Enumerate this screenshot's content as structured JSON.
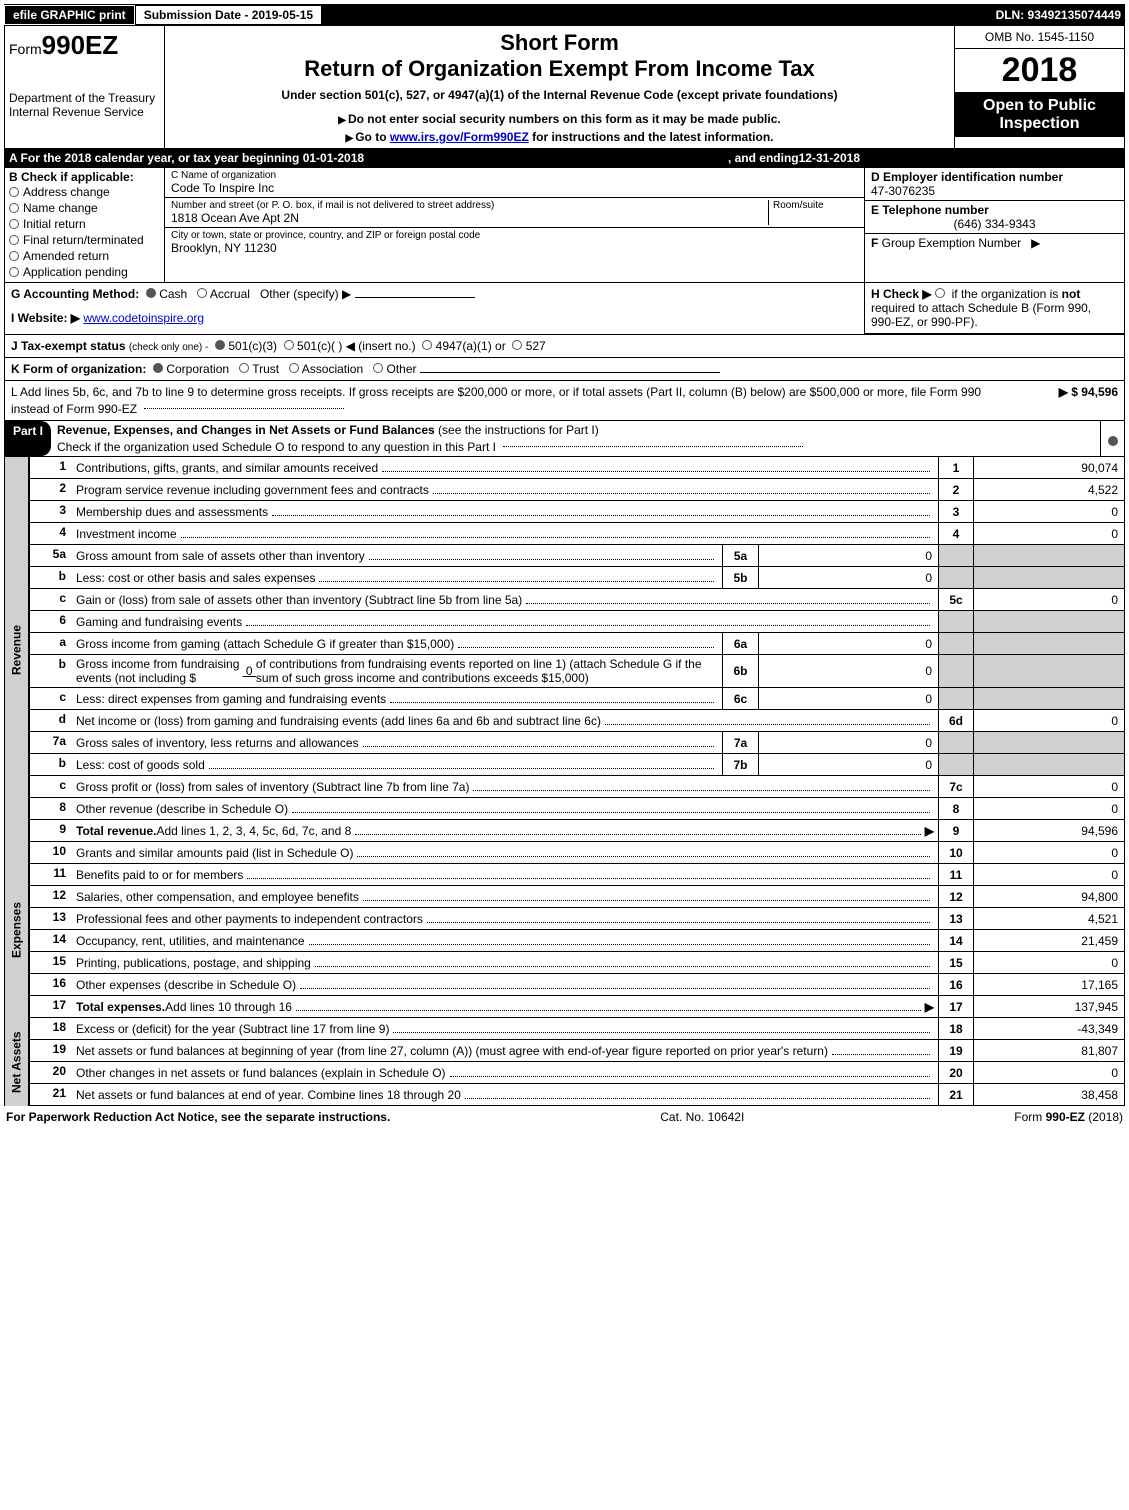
{
  "topbar": {
    "efile": "efile GRAPHIC print",
    "submission": "Submission Date - 2019-05-15",
    "dln": "DLN: 93492135074449"
  },
  "header": {
    "form_prefix": "Form",
    "form_number": "990EZ",
    "dept": "Department of the Treasury",
    "irs": "Internal Revenue Service",
    "short_form": "Short Form",
    "title": "Return of Organization Exempt From Income Tax",
    "subtitle": "Under section 501(c), 527, or 4947(a)(1) of the Internal Revenue Code (except private foundations)",
    "ssn_note": "Do not enter social security numbers on this form as it may be made public.",
    "goto": "Go to ",
    "goto_link": "www.irs.gov/Form990EZ",
    "goto_rest": " for instructions and the latest information.",
    "omb": "OMB No. 1545-1150",
    "year": "2018",
    "open": "Open to Public Inspection"
  },
  "rowA": {
    "text_pre": "A  For the 2018 calendar year, or tax year beginning ",
    "begin": "01-01-2018",
    "mid": " , and ending ",
    "end": "12-31-2018"
  },
  "colB": {
    "label": "B  Check if applicable:",
    "items": [
      "Address change",
      "Name change",
      "Initial return",
      "Final return/terminated",
      "Amended return",
      "Application pending"
    ]
  },
  "colC": {
    "name_label": "C Name of organization",
    "name": "Code To Inspire Inc",
    "street_label": "Number and street (or P. O. box, if mail is not delivered to street address)",
    "room_label": "Room/suite",
    "street": "1818 Ocean Ave Apt 2N",
    "city_label": "City or town, state or province, country, and ZIP or foreign postal code",
    "city": "Brooklyn, NY  11230"
  },
  "colD": {
    "ein_label": "D Employer identification number",
    "ein": "47-3076235",
    "tel_label": "E Telephone number",
    "tel": "(646) 334-9343",
    "group_label": "F Group Exemption Number ▶"
  },
  "rowG": {
    "label": "G Accounting Method:",
    "cash": "Cash",
    "accrual": "Accrual",
    "other": "Other (specify) ▶"
  },
  "rowH": {
    "label": "H  Check ▶",
    "text": "if the organization is not required to attach Schedule B (Form 990, 990-EZ, or 990-PF)."
  },
  "rowI": {
    "label": "I Website: ▶",
    "site": "www.codetoinspire.org"
  },
  "rowJ": {
    "label": "J Tax-exempt status",
    "note": "(check only one) -",
    "opts": [
      "501(c)(3)",
      "501(c)(  ) ◀ (insert no.)",
      "4947(a)(1) or",
      "527"
    ]
  },
  "rowK": {
    "label": "K Form of organization:",
    "opts": [
      "Corporation",
      "Trust",
      "Association",
      "Other"
    ]
  },
  "rowL": {
    "text": "L Add lines 5b, 6c, and 7b to line 9 to determine gross receipts. If gross receipts are $200,000 or more, or if total assets (Part II, column (B) below) are $500,000 or more, file Form 990 instead of Form 990-EZ",
    "amount": "▶ $ 94,596"
  },
  "part1": {
    "label": "Part I",
    "title": "Revenue, Expenses, and Changes in Net Assets or Fund Balances",
    "title_note": "(see the instructions for Part I)",
    "check_note": "Check if the organization used Schedule O to respond to any question in this Part I"
  },
  "sections": {
    "revenue": "Revenue",
    "expenses": "Expenses",
    "netassets": "Net Assets"
  },
  "lines": {
    "l1": {
      "n": "1",
      "d": "Contributions, gifts, grants, and similar amounts received",
      "box": "1",
      "v": "90,074"
    },
    "l2": {
      "n": "2",
      "d": "Program service revenue including government fees and contracts",
      "box": "2",
      "v": "4,522"
    },
    "l3": {
      "n": "3",
      "d": "Membership dues and assessments",
      "box": "3",
      "v": "0"
    },
    "l4": {
      "n": "4",
      "d": "Investment income",
      "box": "4",
      "v": "0"
    },
    "l5a": {
      "n": "5a",
      "d": "Gross amount from sale of assets other than inventory",
      "mbox": "5a",
      "mv": "0"
    },
    "l5b": {
      "n": "b",
      "d": "Less: cost or other basis and sales expenses",
      "mbox": "5b",
      "mv": "0"
    },
    "l5c": {
      "n": "c",
      "d": "Gain or (loss) from sale of assets other than inventory (Subtract line 5b from line 5a)",
      "box": "5c",
      "v": "0"
    },
    "l6": {
      "n": "6",
      "d": "Gaming and fundraising events"
    },
    "l6a": {
      "n": "a",
      "d": "Gross income from gaming (attach Schedule G if greater than $15,000)",
      "mbox": "6a",
      "mv": "0"
    },
    "l6b": {
      "n": "b",
      "d1": "Gross income from fundraising events (not including $ ",
      "inc": "0",
      "d2": " of contributions from fundraising events reported on line 1) (attach Schedule G if the sum of such gross income and contributions exceeds $15,000)",
      "mbox": "6b",
      "mv": "0"
    },
    "l6c": {
      "n": "c",
      "d": "Less: direct expenses from gaming and fundraising events",
      "mbox": "6c",
      "mv": "0"
    },
    "l6d": {
      "n": "d",
      "d": "Net income or (loss) from gaming and fundraising events (add lines 6a and 6b and subtract line 6c)",
      "box": "6d",
      "v": "0"
    },
    "l7a": {
      "n": "7a",
      "d": "Gross sales of inventory, less returns and allowances",
      "mbox": "7a",
      "mv": "0"
    },
    "l7b": {
      "n": "b",
      "d": "Less: cost of goods sold",
      "mbox": "7b",
      "mv": "0"
    },
    "l7c": {
      "n": "c",
      "d": "Gross profit or (loss) from sales of inventory (Subtract line 7b from line 7a)",
      "box": "7c",
      "v": "0"
    },
    "l8": {
      "n": "8",
      "d": "Other revenue (describe in Schedule O)",
      "box": "8",
      "v": "0"
    },
    "l9": {
      "n": "9",
      "d": "Total revenue. Add lines 1, 2, 3, 4, 5c, 6d, 7c, and 8",
      "box": "9",
      "v": "94,596",
      "bold": true,
      "arrow": true
    },
    "l10": {
      "n": "10",
      "d": "Grants and similar amounts paid (list in Schedule O)",
      "box": "10",
      "v": "0"
    },
    "l11": {
      "n": "11",
      "d": "Benefits paid to or for members",
      "box": "11",
      "v": "0"
    },
    "l12": {
      "n": "12",
      "d": "Salaries, other compensation, and employee benefits",
      "box": "12",
      "v": "94,800"
    },
    "l13": {
      "n": "13",
      "d": "Professional fees and other payments to independent contractors",
      "box": "13",
      "v": "4,521"
    },
    "l14": {
      "n": "14",
      "d": "Occupancy, rent, utilities, and maintenance",
      "box": "14",
      "v": "21,459"
    },
    "l15": {
      "n": "15",
      "d": "Printing, publications, postage, and shipping",
      "box": "15",
      "v": "0"
    },
    "l16": {
      "n": "16",
      "d": "Other expenses (describe in Schedule O)",
      "box": "16",
      "v": "17,165"
    },
    "l17": {
      "n": "17",
      "d": "Total expenses. Add lines 10 through 16",
      "box": "17",
      "v": "137,945",
      "bold": true,
      "arrow": true
    },
    "l18": {
      "n": "18",
      "d": "Excess or (deficit) for the year (Subtract line 17 from line 9)",
      "box": "18",
      "v": "-43,349"
    },
    "l19": {
      "n": "19",
      "d": "Net assets or fund balances at beginning of year (from line 27, column (A)) (must agree with end-of-year figure reported on prior year's return)",
      "box": "19",
      "v": "81,807"
    },
    "l20": {
      "n": "20",
      "d": "Other changes in net assets or fund balances (explain in Schedule O)",
      "box": "20",
      "v": "0"
    },
    "l21": {
      "n": "21",
      "d": "Net assets or fund balances at end of year. Combine lines 18 through 20",
      "box": "21",
      "v": "38,458"
    }
  },
  "footer": {
    "left": "For Paperwork Reduction Act Notice, see the separate instructions.",
    "mid": "Cat. No. 10642I",
    "right": "Form 990-EZ (2018)"
  },
  "style": {
    "colors": {
      "black": "#000000",
      "white": "#ffffff",
      "grey": "#d0d0d0",
      "link": "#0000cc"
    },
    "fonts": {
      "base_size": 12,
      "title_size": 22,
      "year_size": 34,
      "form_size": 26
    }
  }
}
